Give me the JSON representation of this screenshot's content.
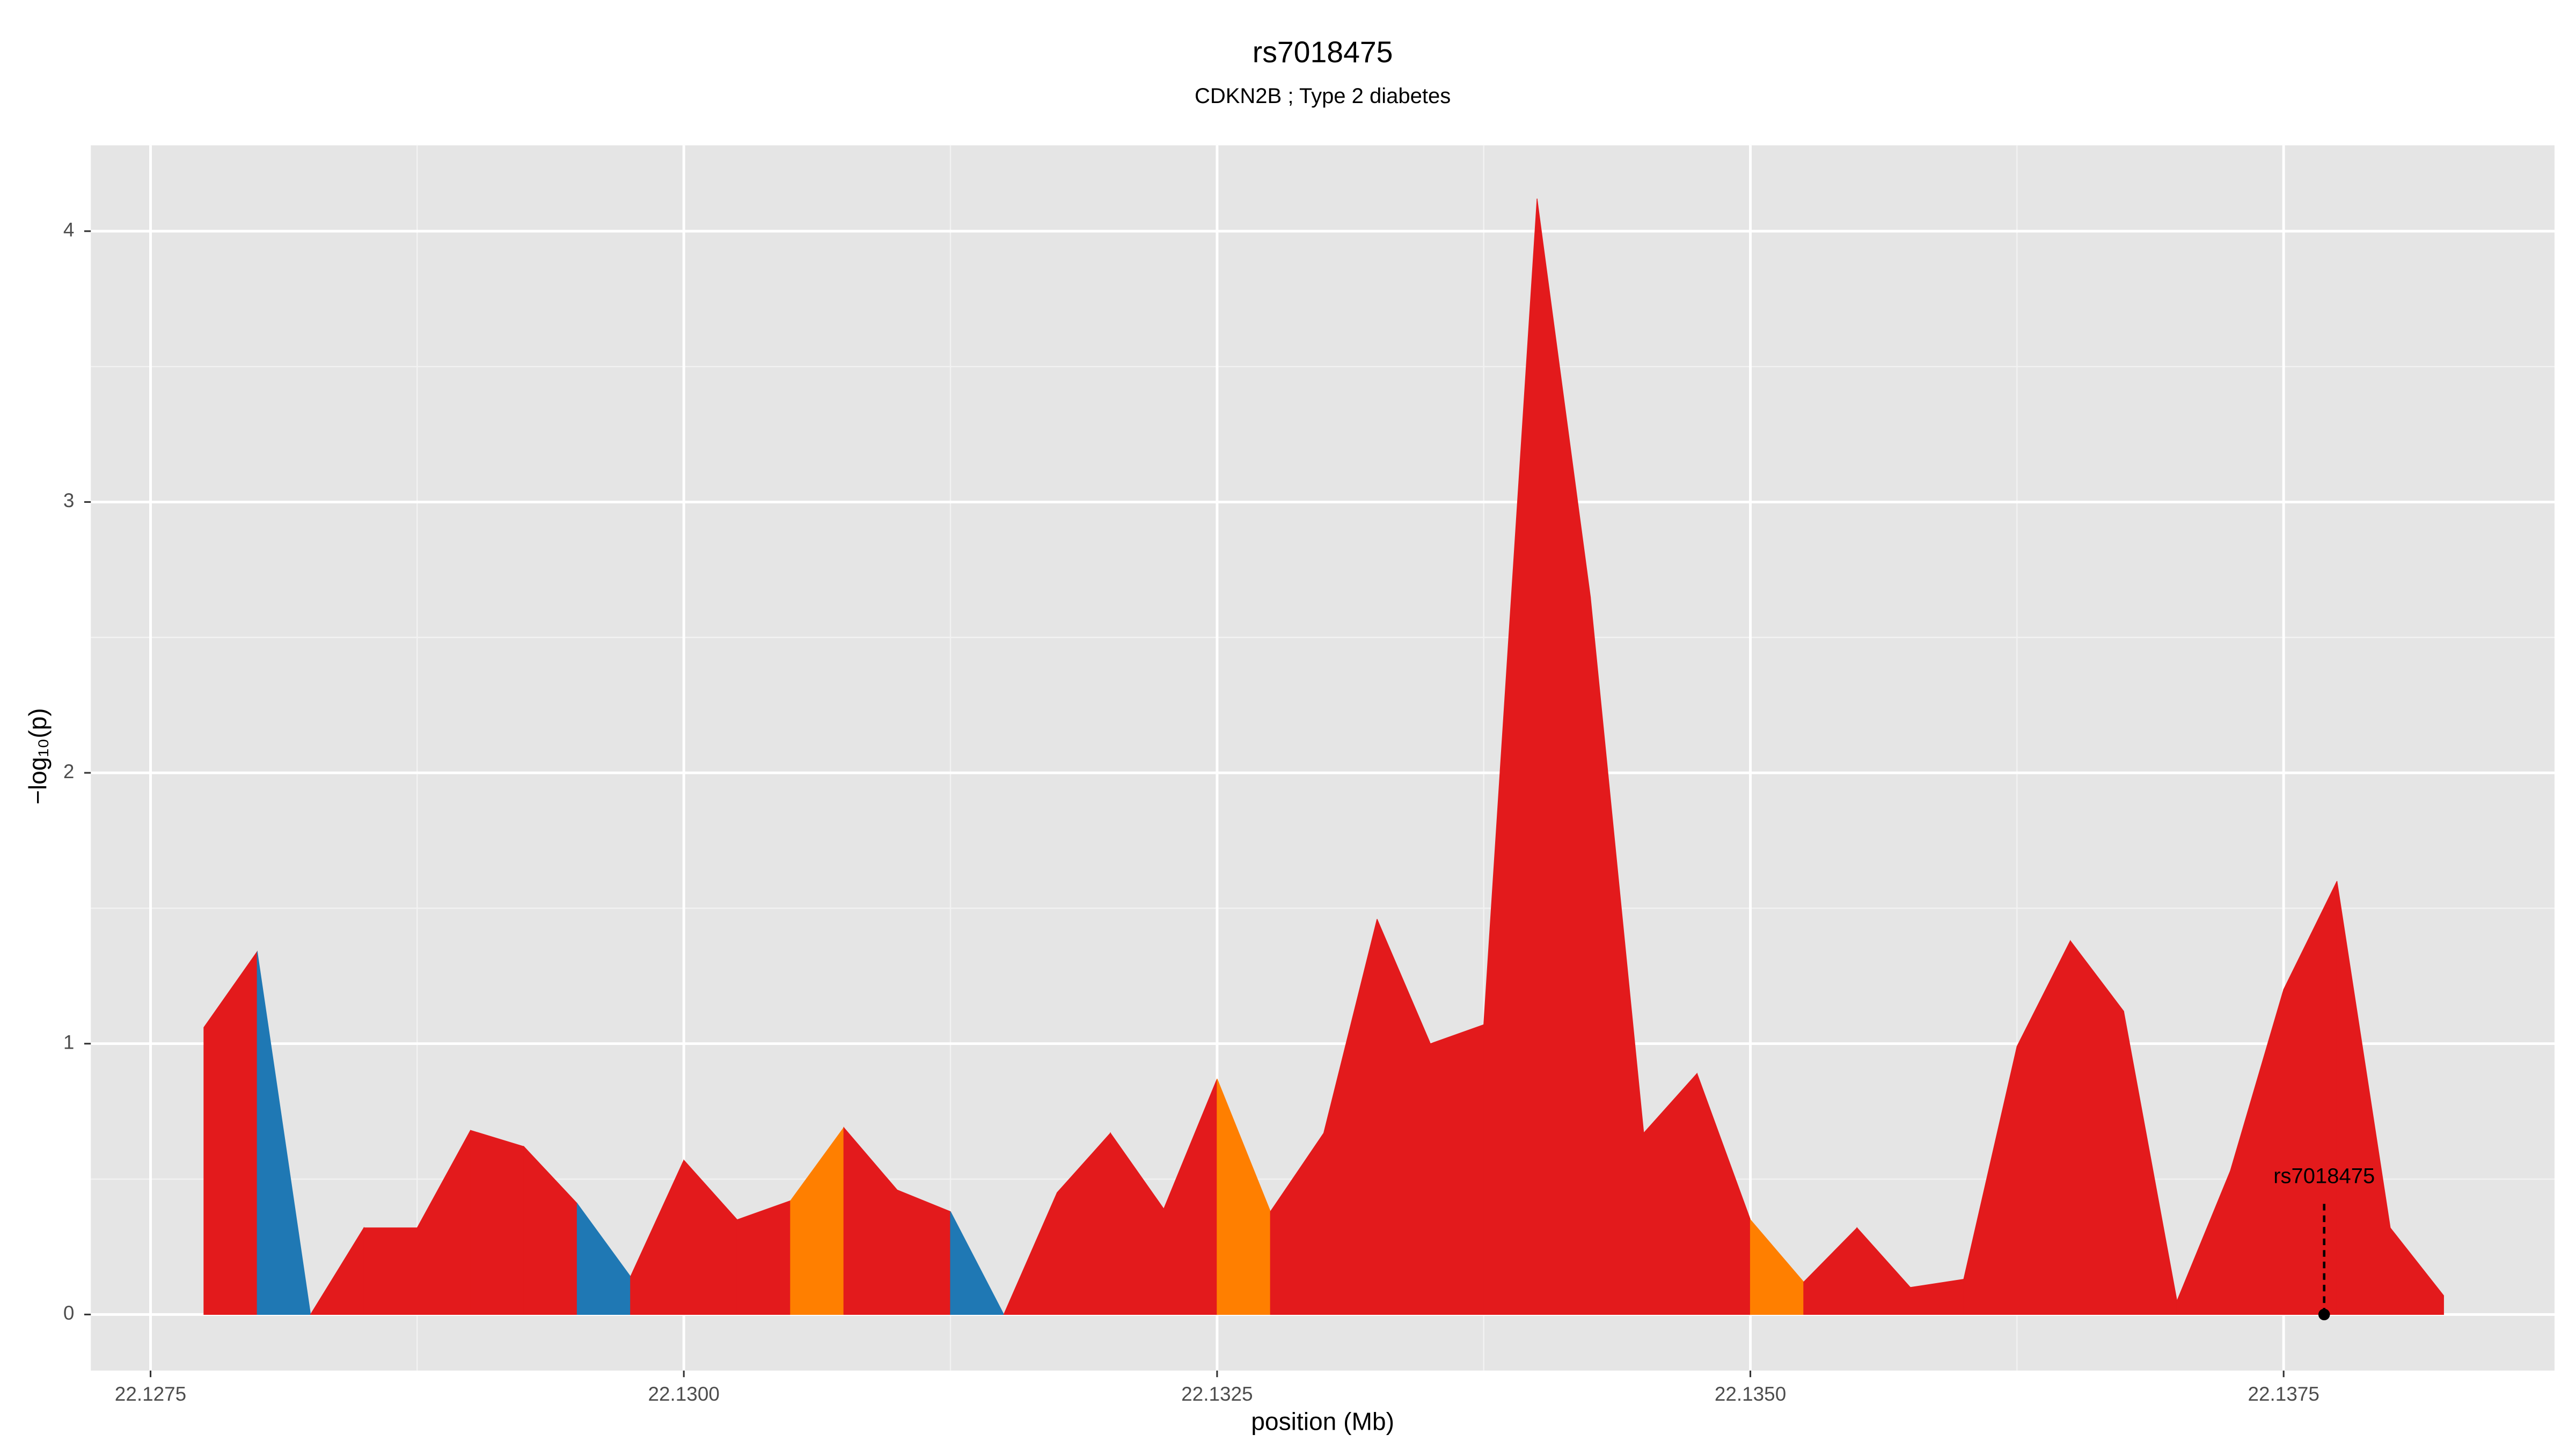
{
  "chart_data": {
    "type": "area",
    "title": "rs7018475",
    "subtitle": "CDKN2B ; Type 2 diabetes",
    "xlabel": "position (Mb)",
    "ylabel": "−log₁₀(p)",
    "x": [
      22.12775,
      22.128,
      22.12825,
      22.1285,
      22.12875,
      22.129,
      22.12925,
      22.1295,
      22.12975,
      22.13,
      22.13025,
      22.1305,
      22.13075,
      22.131,
      22.13125,
      22.1315,
      22.13175,
      22.132,
      22.13225,
      22.1325,
      22.13275,
      22.133,
      22.13325,
      22.1335,
      22.13375,
      22.134,
      22.13425,
      22.1345,
      22.13475,
      22.135,
      22.13525,
      22.1355,
      22.13575,
      22.136,
      22.13625,
      22.1365,
      22.13675,
      22.137,
      22.13725,
      22.1375,
      22.13775,
      22.138,
      22.13825
    ],
    "values": [
      1.06,
      1.34,
      0,
      0.32,
      0.32,
      0.68,
      0.62,
      0.41,
      0.14,
      0.57,
      0.35,
      0.42,
      0.69,
      0.46,
      0.38,
      0,
      0.45,
      0.67,
      0.39,
      0.87,
      0.38,
      0.67,
      1.46,
      1.0,
      1.07,
      4.12,
      2.65,
      0.67,
      0.89,
      0.35,
      0.12,
      0.32,
      0.1,
      0.13,
      0.99,
      1.38,
      1.12,
      0.05,
      0.53,
      1.2,
      1.6,
      0.32,
      0.07
    ],
    "segment_colors": [
      "#e31a1c",
      "#1f78b4",
      "#e31a1c",
      "#e31a1c",
      "#e31a1c",
      "#e31a1c",
      "#e31a1c",
      "#1f78b4",
      "#e31a1c",
      "#e31a1c",
      "#e31a1c",
      "#ff7f00",
      "#e31a1c",
      "#e31a1c",
      "#1f78b4",
      "#e31a1c",
      "#e31a1c",
      "#e31a1c",
      "#e31a1c",
      "#ff7f00",
      "#e31a1c",
      "#e31a1c",
      "#e31a1c",
      "#e31a1c",
      "#e31a1c",
      "#e31a1c",
      "#e31a1c",
      "#e31a1c",
      "#e31a1c",
      "#ff7f00",
      "#e31a1c",
      "#e31a1c",
      "#e31a1c",
      "#e31a1c",
      "#e31a1c",
      "#e31a1c",
      "#e31a1c",
      "#e31a1c",
      "#e31a1c",
      "#e31a1c",
      "#e31a1c",
      "#e31a1c"
    ],
    "xlim": [
      22.12722,
      22.13877
    ],
    "ylim": [
      -0.207,
      4.317
    ],
    "xticks": [
      22.1275,
      {
        "value": 22.13,
        "label": "22.1300"
      },
      22.1325,
      {
        "value": 22.135,
        "label": "22.1350"
      },
      22.1375
    ],
    "yticks": [
      0,
      1,
      2,
      3,
      4
    ],
    "x_minor_grid": [
      22.12875,
      22.13125,
      22.13375,
      22.13625
    ],
    "y_minor_grid": [
      0.5,
      1.5,
      2.5,
      3.5
    ],
    "grid": true,
    "annotation": {
      "label": "rs7018475",
      "x": 22.13769,
      "y": 0
    }
  }
}
